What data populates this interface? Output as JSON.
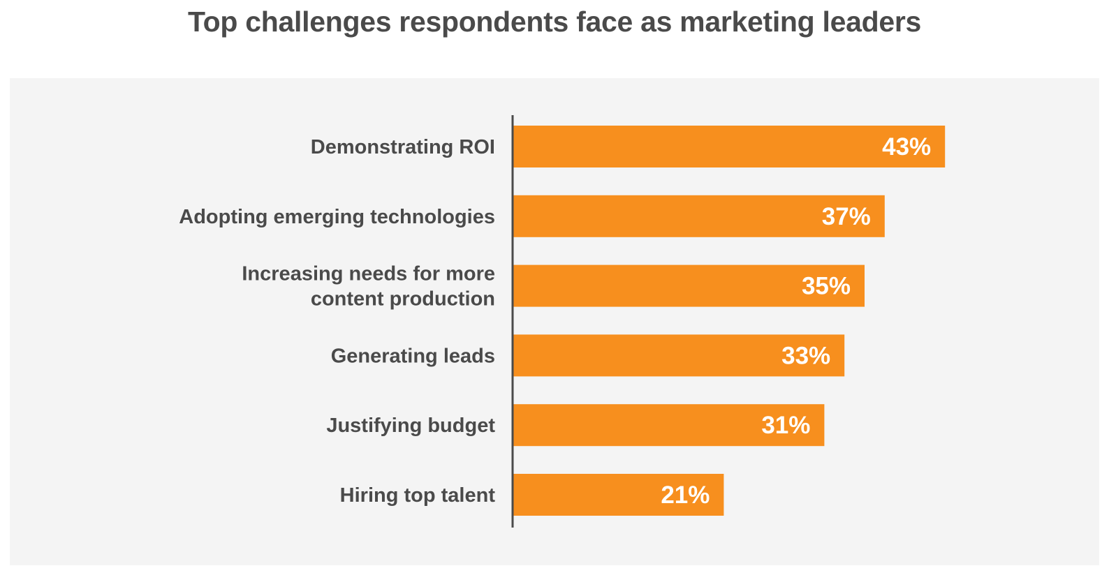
{
  "chart_data": {
    "type": "bar",
    "orientation": "horizontal",
    "title": "Top challenges respondents face as marketing leaders",
    "categories": [
      [
        "Demonstrating ROI"
      ],
      [
        "Adopting emerging technologies"
      ],
      [
        "Increasing needs for more",
        "content production"
      ],
      [
        "Generating leads"
      ],
      [
        "Justifying budget"
      ],
      [
        "Hiring top talent"
      ]
    ],
    "values": [
      43,
      37,
      35,
      33,
      31,
      21
    ],
    "value_labels": [
      "43%",
      "37%",
      "35%",
      "33%",
      "31%",
      "21%"
    ],
    "unit": "%",
    "xlabel": "",
    "ylabel": "",
    "grid": false,
    "legend": "none"
  },
  "colors": {
    "bar": "#f78f1e",
    "axis": "#4a4a4a",
    "panel": "#f4f4f4",
    "title": "#4a4a4a",
    "value_text": "#ffffff"
  }
}
